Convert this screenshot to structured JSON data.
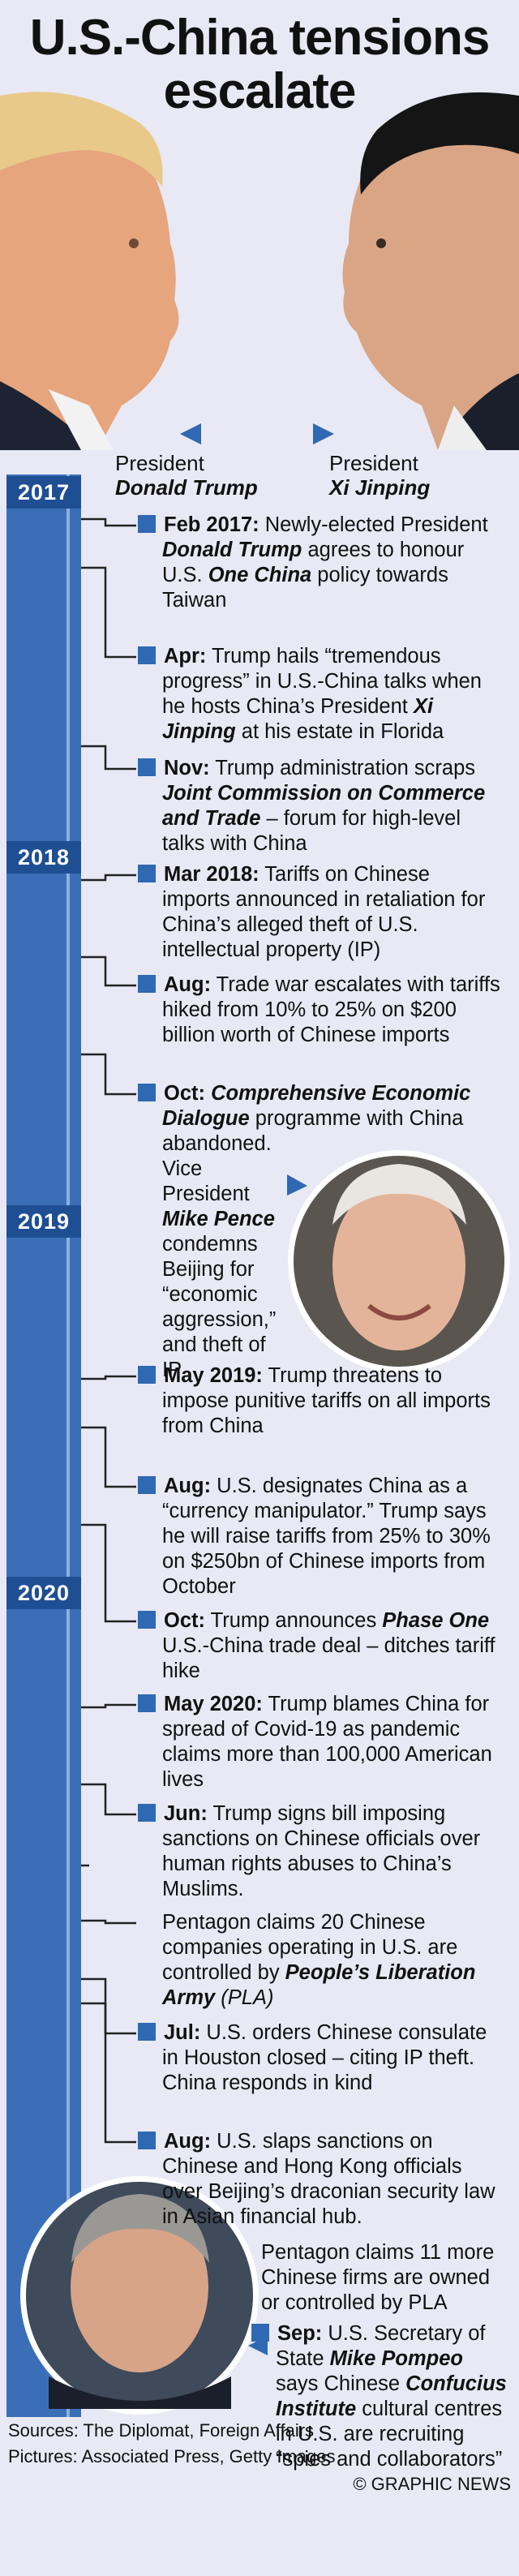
{
  "title": "U.S.-China tensions escalate",
  "portraits": [
    {
      "role": "President",
      "name": "Donald Trump"
    },
    {
      "role": "President",
      "name": "Xi Jinping"
    }
  ],
  "years": [
    "2017",
    "2018",
    "2019",
    "2020"
  ],
  "events": [
    {
      "bullet": true,
      "paragraphs": [
        [
          {
            "text": "Feb 2017:",
            "style": "b"
          },
          {
            "text": " Newly-elected President ",
            "style": "n"
          },
          {
            "text": "Donald Trump",
            "style": "bi"
          },
          {
            "text": " agrees to honour U.S. ",
            "style": "n"
          },
          {
            "text": "One China",
            "style": "bi"
          },
          {
            "text": " policy towards Taiwan",
            "style": "n"
          }
        ]
      ]
    },
    {
      "bullet": true,
      "paragraphs": [
        [
          {
            "text": "Apr:",
            "style": "b"
          },
          {
            "text": " Trump hails “tremendous progress” in U.S.-China talks when he hosts China’s President ",
            "style": "n"
          },
          {
            "text": "Xi Jinping",
            "style": "bi"
          },
          {
            "text": " at his estate in Florida",
            "style": "n"
          }
        ]
      ]
    },
    {
      "bullet": true,
      "paragraphs": [
        [
          {
            "text": "Nov:",
            "style": "b"
          },
          {
            "text": " Trump administration scraps ",
            "style": "n"
          },
          {
            "text": "Joint Commission on Commerce and Trade",
            "style": "bi"
          },
          {
            "text": " – forum for high-level talks with China",
            "style": "n"
          }
        ]
      ]
    },
    {
      "bullet": true,
      "paragraphs": [
        [
          {
            "text": "Mar 2018:",
            "style": "b"
          },
          {
            "text": " Tariffs on Chinese imports announced in retaliation for China’s alleged theft of U.S. intellectual property (IP)",
            "style": "n"
          }
        ]
      ]
    },
    {
      "bullet": true,
      "paragraphs": [
        [
          {
            "text": "Aug:",
            "style": "b"
          },
          {
            "text": " Trade war escalates with tariffs hiked from 10% to 25% on $200 billion worth of Chinese imports",
            "style": "n"
          }
        ]
      ]
    },
    {
      "bullet": true,
      "paragraphs": [
        [
          {
            "text": "Oct:",
            "style": "b"
          },
          {
            "text": " ",
            "style": "n"
          },
          {
            "text": "Comprehensive Economic Dialogue",
            "style": "bi"
          },
          {
            "text": " programme with China abandoned.",
            "style": "n"
          }
        ],
        [
          {
            "text": "Vice President ",
            "style": "n"
          },
          {
            "text": "Mike Pence",
            "style": "bi"
          },
          {
            "text": " condemns Beijing for “economic aggression,” and theft of IP",
            "style": "n"
          }
        ]
      ]
    },
    {
      "bullet": true,
      "paragraphs": [
        [
          {
            "text": "May 2019:",
            "style": "b"
          },
          {
            "text": " Trump threatens to impose punitive tariffs on all imports from China",
            "style": "n"
          }
        ]
      ]
    },
    {
      "bullet": true,
      "paragraphs": [
        [
          {
            "text": "Aug:",
            "style": "b"
          },
          {
            "text": " U.S. designates China as a “currency manipulator.” Trump says he will raise tariffs from 25% to 30% on $250bn of Chinese imports from October",
            "style": "n"
          }
        ]
      ]
    },
    {
      "bullet": true,
      "paragraphs": [
        [
          {
            "text": "Oct:",
            "style": "b"
          },
          {
            "text": " Trump announces ",
            "style": "n"
          },
          {
            "text": "Phase One",
            "style": "bi"
          },
          {
            "text": " U.S.-China trade deal – ditches tariff hike",
            "style": "n"
          }
        ]
      ]
    },
    {
      "bullet": true,
      "paragraphs": [
        [
          {
            "text": "May 2020:",
            "style": "b"
          },
          {
            "text": " Trump blames China for spread of Covid-19 as pandemic claims more than 100,000 American lives",
            "style": "n"
          }
        ]
      ]
    },
    {
      "bullet": true,
      "paragraphs": [
        [
          {
            "text": "Jun:",
            "style": "b"
          },
          {
            "text": " Trump signs bill imposing sanctions on Chinese officials over human rights abuses to China’s Muslims.",
            "style": "n"
          }
        ]
      ]
    },
    {
      "bullet": false,
      "paragraphs": [
        [
          {
            "text": "Pentagon claims 20 Chinese companies operating in U.S. are controlled by ",
            "style": "n"
          },
          {
            "text": "People’s Liberation Army",
            "style": "bi"
          },
          {
            "text": " (PLA)",
            "style": "i"
          }
        ]
      ]
    },
    {
      "bullet": true,
      "paragraphs": [
        [
          {
            "text": "Jul:",
            "style": "b"
          },
          {
            "text": " U.S. orders Chinese consulate in Houston closed – citing IP theft. China responds in kind",
            "style": "n"
          }
        ]
      ]
    },
    {
      "bullet": true,
      "paragraphs": [
        [
          {
            "text": "Aug:",
            "style": "b"
          },
          {
            "text": " U.S. slaps sanctions on Chinese and Hong Kong officials over Beijing’s draconian security law in Asian financial hub.",
            "style": "n"
          }
        ]
      ]
    },
    {
      "bullet": false,
      "paragraphs": [
        [
          {
            "text": "Pentagon claims 11 more Chinese firms are owned or controlled by PLA",
            "style": "n"
          }
        ]
      ]
    },
    {
      "bullet": true,
      "paragraphs": [
        [
          {
            "text": "Sep:",
            "style": "b"
          },
          {
            "text": " U.S. Secretary of State ",
            "style": "n"
          },
          {
            "text": "Mike Pompeo",
            "style": "bi"
          },
          {
            "text": " says Chinese ",
            "style": "n"
          },
          {
            "text": "Confucius Institute",
            "style": "bi"
          },
          {
            "text": " cultural centres in U.S. are recruiting “spies and collaborators”",
            "style": "n"
          }
        ]
      ]
    }
  ],
  "footer": {
    "sources": "Sources: The Diplomat, Foreign Affairs",
    "pictures": "Pictures: Associated Press, Getty Images",
    "credit": "© GRAPHIC NEWS"
  }
}
